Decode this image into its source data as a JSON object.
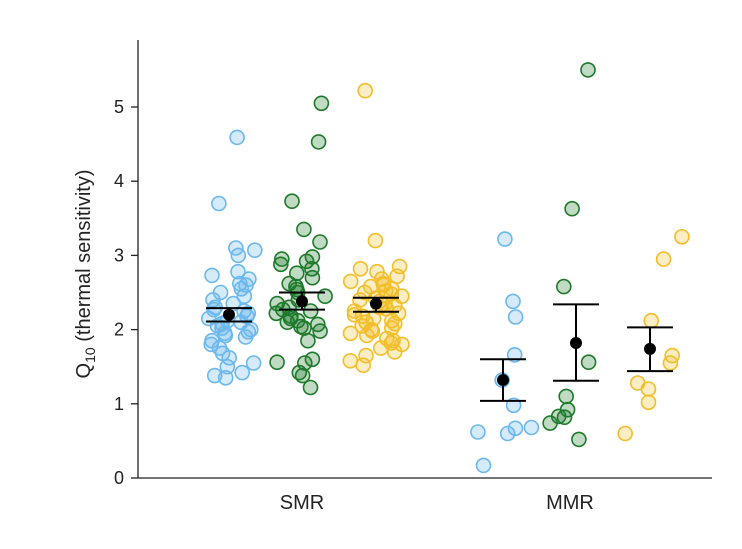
{
  "chart_data": {
    "type": "scatter",
    "title": "",
    "xlabel": "",
    "ylabel": {
      "base": "Q",
      "subscript": "10",
      "suffix": " (thermal sensitivity)"
    },
    "ylim": [
      0,
      5.8
    ],
    "yticks": [
      "0",
      "1",
      "2",
      "3",
      "4",
      "5"
    ],
    "categories": [
      "SMR",
      "MMR"
    ],
    "colors": {
      "blue": "#6cb8ec",
      "green": "#1e7a2a",
      "yellow": "#f2be2a"
    },
    "groups": [
      {
        "category": "SMR",
        "series": "blue",
        "color": "#6cb8ec",
        "mean": 2.2,
        "err_low": 2.11,
        "err_high": 2.29,
        "points": [
          4.59,
          3.7,
          3.1,
          3.07,
          3.0,
          2.78,
          2.73,
          2.68,
          2.62,
          2.6,
          2.55,
          2.5,
          2.45,
          2.4,
          2.35,
          2.3,
          2.27,
          2.25,
          2.22,
          2.18,
          2.15,
          2.12,
          2.1,
          2.08,
          2.05,
          2.02,
          2.0,
          1.97,
          1.95,
          1.92,
          1.9,
          1.85,
          1.8,
          1.75,
          1.68,
          1.62,
          1.55,
          1.5,
          1.42,
          1.38,
          1.35
        ]
      },
      {
        "category": "SMR",
        "series": "green",
        "color": "#1e7a2a",
        "mean": 2.38,
        "err_low": 2.27,
        "err_high": 2.5,
        "points": [
          5.05,
          4.53,
          3.73,
          3.35,
          3.18,
          2.98,
          2.95,
          2.92,
          2.88,
          2.82,
          2.76,
          2.7,
          2.62,
          2.58,
          2.54,
          2.5,
          2.45,
          2.4,
          2.35,
          2.3,
          2.27,
          2.25,
          2.22,
          2.18,
          2.15,
          2.12,
          2.1,
          2.07,
          2.04,
          2.02,
          1.98,
          1.85,
          1.6,
          1.56,
          1.55,
          1.42,
          1.38,
          1.22
        ]
      },
      {
        "category": "SMR",
        "series": "yellow",
        "color": "#f2be2a",
        "mean": 2.35,
        "err_low": 2.24,
        "err_high": 2.43,
        "points": [
          5.22,
          3.2,
          2.85,
          2.82,
          2.78,
          2.72,
          2.68,
          2.65,
          2.62,
          2.6,
          2.58,
          2.55,
          2.52,
          2.5,
          2.48,
          2.45,
          2.42,
          2.4,
          2.38,
          2.35,
          2.32,
          2.3,
          2.28,
          2.25,
          2.22,
          2.2,
          2.18,
          2.15,
          2.12,
          2.1,
          2.08,
          2.05,
          2.02,
          2.0,
          1.98,
          1.95,
          1.92,
          1.88,
          1.85,
          1.82,
          1.8,
          1.75,
          1.7,
          1.65,
          1.58,
          1.52
        ]
      },
      {
        "category": "MMR",
        "series": "blue",
        "color": "#6cb8ec",
        "mean": 1.32,
        "err_low": 1.04,
        "err_high": 1.6,
        "points": [
          3.22,
          2.38,
          2.17,
          1.66,
          1.32,
          0.98,
          0.68,
          0.67,
          0.62,
          0.6,
          0.17
        ]
      },
      {
        "category": "MMR",
        "series": "green",
        "color": "#1e7a2a",
        "mean": 1.82,
        "err_low": 1.31,
        "err_high": 2.34,
        "points": [
          5.5,
          3.63,
          2.58,
          1.56,
          1.1,
          0.92,
          0.83,
          0.82,
          0.74,
          0.52
        ]
      },
      {
        "category": "MMR",
        "series": "yellow",
        "color": "#f2be2a",
        "mean": 1.74,
        "err_low": 1.44,
        "err_high": 2.03,
        "points": [
          3.25,
          2.95,
          2.12,
          1.65,
          1.55,
          1.28,
          1.2,
          1.02,
          0.6
        ]
      }
    ]
  }
}
